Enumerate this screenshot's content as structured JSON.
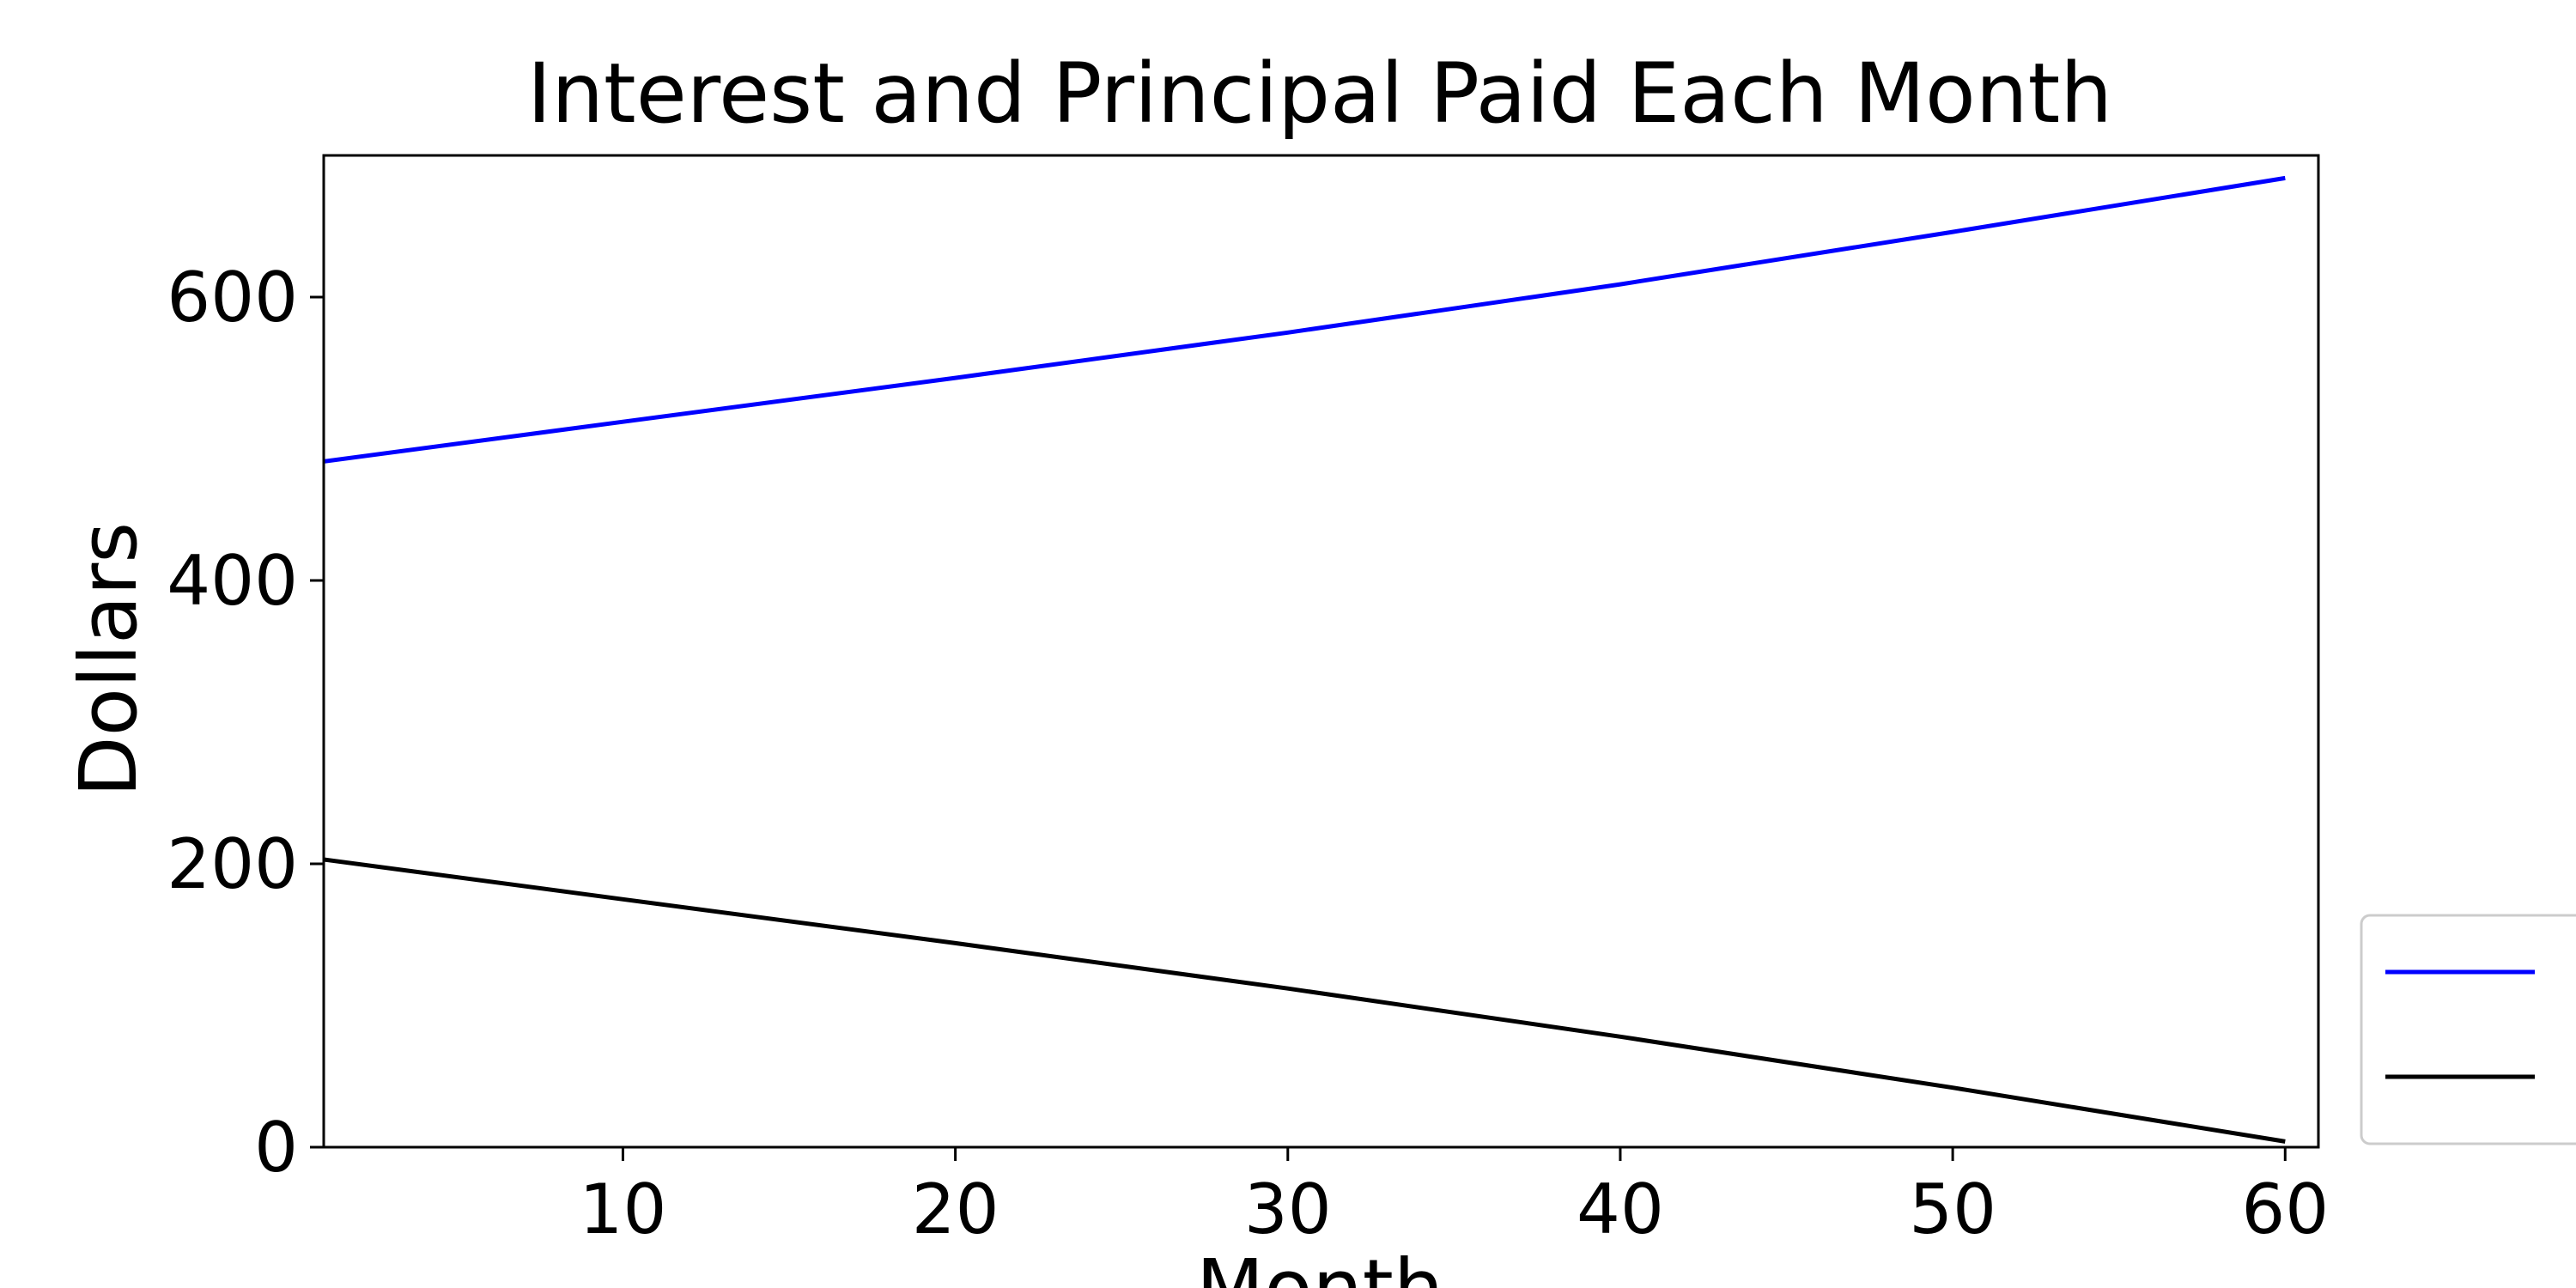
{
  "chart_data": {
    "type": "line",
    "title": "Interest and Principal Paid Each Month",
    "xlabel": "Month",
    "ylabel": "Dollars",
    "xlim": [
      1,
      61
    ],
    "ylim": [
      0,
      700
    ],
    "x_ticks": [
      10,
      20,
      30,
      40,
      50,
      60
    ],
    "y_ticks": [
      0,
      200,
      400,
      600
    ],
    "grid": false,
    "legend_position": "lower-right, outside plot area",
    "series": [
      {
        "color": "#0000ff",
        "x": [
          1,
          10,
          20,
          30,
          40,
          50,
          60
        ],
        "values": [
          484,
          512,
          543,
          575,
          609,
          646,
          684
        ]
      },
      {
        "color": "#000000",
        "x": [
          1,
          10,
          20,
          30,
          40,
          50,
          60
        ],
        "values": [
          203,
          175,
          144,
          112,
          78,
          42,
          4
        ]
      }
    ]
  }
}
